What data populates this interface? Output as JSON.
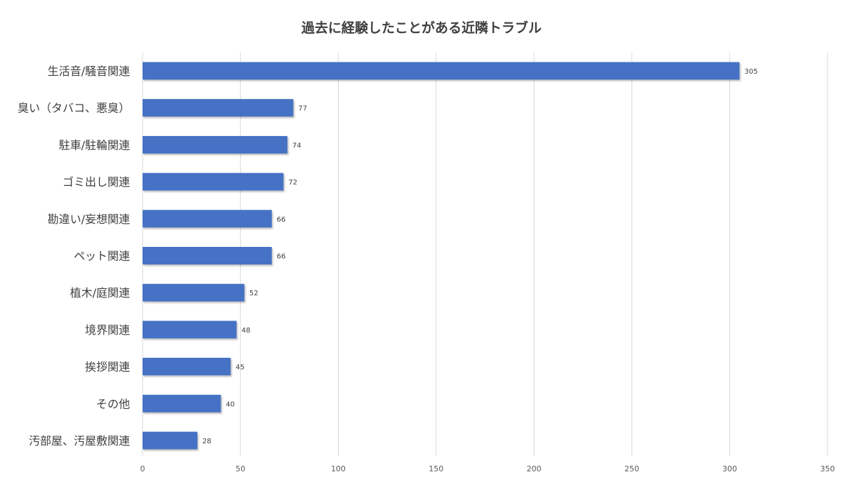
{
  "chart_data": {
    "type": "bar",
    "orientation": "horizontal",
    "title": "過去に経験したことがある近隣トラブル",
    "categories": [
      "生活音/騒音関連",
      "臭い（タバコ、悪臭）",
      "駐車/駐輪関連",
      "ゴミ出し関連",
      "勘違い/妄想関連",
      "ペット関連",
      "植木/庭関連",
      "境界関連",
      "挨拶関連",
      "その他",
      "汚部屋、汚屋敷関連"
    ],
    "values": [
      305,
      77,
      74,
      72,
      66,
      66,
      52,
      48,
      45,
      40,
      28
    ],
    "xlim": [
      0,
      350
    ],
    "ticks": [
      "0",
      "50",
      "100",
      "150",
      "200",
      "250",
      "300",
      "350"
    ],
    "xlabel": "",
    "ylabel": "",
    "grid": true,
    "data_labels": true,
    "bar_color": "#4472c4"
  }
}
